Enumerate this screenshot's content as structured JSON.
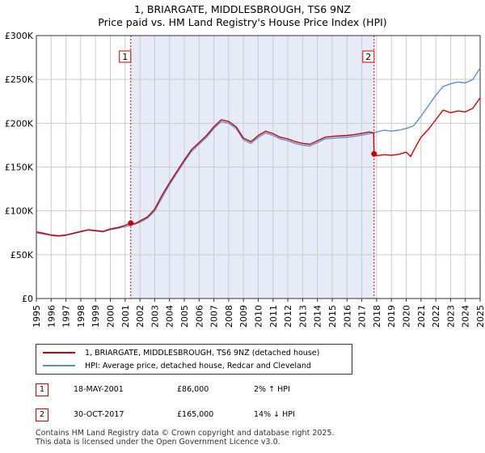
{
  "title_line1": "1, BRIARGATE, MIDDLESBROUGH, TS6 9NZ",
  "title_line2": "Price paid vs. HM Land Registry's House Price Index (HPI)",
  "chart_data": {
    "type": "line",
    "x_range": [
      1995.0,
      2025.0
    ],
    "ylim": [
      0,
      300000
    ],
    "y_ticks": [
      {
        "value": 0,
        "label": "£0"
      },
      {
        "value": 50000,
        "label": "£50K"
      },
      {
        "value": 100000,
        "label": "£100K"
      },
      {
        "value": 150000,
        "label": "£150K"
      },
      {
        "value": 200000,
        "label": "£200K"
      },
      {
        "value": 250000,
        "label": "£250K"
      },
      {
        "value": 300000,
        "label": "£300K"
      }
    ],
    "x_ticks": [
      "1995",
      "1996",
      "1997",
      "1998",
      "1999",
      "2000",
      "2001",
      "2002",
      "2003",
      "2004",
      "2005",
      "2006",
      "2007",
      "2008",
      "2009",
      "2010",
      "2011",
      "2012",
      "2013",
      "2014",
      "2015",
      "2016",
      "2017",
      "2018",
      "2019",
      "2020",
      "2021",
      "2022",
      "2023",
      "2024",
      "2025"
    ],
    "shaded_span": [
      2001.38,
      2017.83
    ],
    "annotations": [
      {
        "label": "1",
        "x": 2001.38
      },
      {
        "label": "2",
        "x": 2017.83
      }
    ],
    "sale_points": [
      {
        "x": 2001.38,
        "y": 86000
      },
      {
        "x": 2017.83,
        "y": 165000
      }
    ],
    "series": [
      {
        "name": "1, BRIARGATE, MIDDLESBROUGH, TS6 9NZ (detached house)",
        "color": "#cc0000",
        "points": [
          [
            1995.0,
            76000
          ],
          [
            1995.5,
            74500
          ],
          [
            1996.0,
            72500
          ],
          [
            1996.5,
            71500
          ],
          [
            1997.0,
            72500
          ],
          [
            1997.5,
            74500
          ],
          [
            1998.0,
            76500
          ],
          [
            1998.5,
            78500
          ],
          [
            1999.0,
            77500
          ],
          [
            1999.5,
            76500
          ],
          [
            2000.0,
            79500
          ],
          [
            2000.5,
            81000
          ],
          [
            2001.0,
            83500
          ],
          [
            2001.38,
            86000
          ],
          [
            2001.7,
            85500
          ],
          [
            2002.0,
            88500
          ],
          [
            2002.5,
            93000
          ],
          [
            2003.0,
            102000
          ],
          [
            2003.5,
            118000
          ],
          [
            2004.0,
            132000
          ],
          [
            2004.5,
            145000
          ],
          [
            2005.0,
            158000
          ],
          [
            2005.5,
            170000
          ],
          [
            2006.0,
            178000
          ],
          [
            2006.5,
            186000
          ],
          [
            2007.0,
            196000
          ],
          [
            2007.5,
            204000
          ],
          [
            2008.0,
            202000
          ],
          [
            2008.5,
            196000
          ],
          [
            2009.0,
            183000
          ],
          [
            2009.5,
            179000
          ],
          [
            2010.0,
            186000
          ],
          [
            2010.5,
            191000
          ],
          [
            2011.0,
            188000
          ],
          [
            2011.5,
            184000
          ],
          [
            2012.0,
            182000
          ],
          [
            2012.5,
            179000
          ],
          [
            2013.0,
            177000
          ],
          [
            2013.5,
            176000
          ],
          [
            2014.0,
            180000
          ],
          [
            2014.5,
            184000
          ],
          [
            2015.0,
            185000
          ],
          [
            2015.5,
            185500
          ],
          [
            2016.0,
            186000
          ],
          [
            2016.5,
            187000
          ],
          [
            2017.0,
            188500
          ],
          [
            2017.5,
            190000
          ],
          [
            2017.8,
            189000
          ],
          [
            2017.83,
            165000
          ],
          [
            2018.0,
            163000
          ],
          [
            2018.5,
            164000
          ],
          [
            2019.0,
            163500
          ],
          [
            2019.5,
            164500
          ],
          [
            2020.0,
            167000
          ],
          [
            2020.3,
            162000
          ],
          [
            2020.6,
            172000
          ],
          [
            2021.0,
            184000
          ],
          [
            2021.5,
            193000
          ],
          [
            2022.0,
            204000
          ],
          [
            2022.5,
            215000
          ],
          [
            2023.0,
            212000
          ],
          [
            2023.5,
            214000
          ],
          [
            2024.0,
            213000
          ],
          [
            2024.5,
            217000
          ],
          [
            2025.0,
            229000
          ]
        ]
      },
      {
        "name": "HPI: Average price, detached house, Redcar and Cleveland",
        "color": "#5b8fd6",
        "points": [
          [
            1995.0,
            75000
          ],
          [
            1995.5,
            73500
          ],
          [
            1996.0,
            72000
          ],
          [
            1996.5,
            71000
          ],
          [
            1997.0,
            72000
          ],
          [
            1997.5,
            74000
          ],
          [
            1998.0,
            76000
          ],
          [
            1998.5,
            78000
          ],
          [
            1999.0,
            77000
          ],
          [
            1999.5,
            76000
          ],
          [
            2000.0,
            78500
          ],
          [
            2000.5,
            80000
          ],
          [
            2001.0,
            82000
          ],
          [
            2001.5,
            84000
          ],
          [
            2002.0,
            87000
          ],
          [
            2002.5,
            91500
          ],
          [
            2003.0,
            100000
          ],
          [
            2003.5,
            115000
          ],
          [
            2004.0,
            130000
          ],
          [
            2004.5,
            143000
          ],
          [
            2005.0,
            156000
          ],
          [
            2005.5,
            168000
          ],
          [
            2006.0,
            176000
          ],
          [
            2006.5,
            184000
          ],
          [
            2007.0,
            194000
          ],
          [
            2007.5,
            202000
          ],
          [
            2008.0,
            200000
          ],
          [
            2008.5,
            194000
          ],
          [
            2009.0,
            181000
          ],
          [
            2009.5,
            177000
          ],
          [
            2010.0,
            184000
          ],
          [
            2010.5,
            189000
          ],
          [
            2011.0,
            186000
          ],
          [
            2011.5,
            182000
          ],
          [
            2012.0,
            180000
          ],
          [
            2012.5,
            177000
          ],
          [
            2013.0,
            175000
          ],
          [
            2013.5,
            174000
          ],
          [
            2014.0,
            178000
          ],
          [
            2014.5,
            182000
          ],
          [
            2015.0,
            183000
          ],
          [
            2015.5,
            183500
          ],
          [
            2016.0,
            184000
          ],
          [
            2016.5,
            185000
          ],
          [
            2017.0,
            186500
          ],
          [
            2017.5,
            188000
          ],
          [
            2018.0,
            190000
          ],
          [
            2018.5,
            192000
          ],
          [
            2019.0,
            191000
          ],
          [
            2019.5,
            192000
          ],
          [
            2020.0,
            194000
          ],
          [
            2020.5,
            197000
          ],
          [
            2021.0,
            208000
          ],
          [
            2021.5,
            220000
          ],
          [
            2022.0,
            232000
          ],
          [
            2022.5,
            242000
          ],
          [
            2023.0,
            245000
          ],
          [
            2023.5,
            247000
          ],
          [
            2024.0,
            246000
          ],
          [
            2024.5,
            250000
          ],
          [
            2025.0,
            263000
          ]
        ]
      }
    ]
  },
  "legend": {
    "property_label": "1, BRIARGATE, MIDDLESBROUGH, TS6 9NZ (detached house)",
    "hpi_label": "HPI: Average price, detached house, Redcar and Cleveland"
  },
  "transactions": [
    {
      "num": "1",
      "date": "18-MAY-2001",
      "price": "£86,000",
      "hpi": "2% ↑ HPI"
    },
    {
      "num": "2",
      "date": "30-OCT-2017",
      "price": "£165,000",
      "hpi": "14% ↓ HPI"
    }
  ],
  "footer": {
    "line1": "Contains HM Land Registry data © Crown copyright and database right 2025.",
    "line2": "This data is licensed under the Open Government Licence v3.0."
  },
  "colors": {
    "property": "#cc0000",
    "hpi": "#5b8fd6",
    "shade": "#e6ebf8",
    "grid": "#cccccc"
  }
}
